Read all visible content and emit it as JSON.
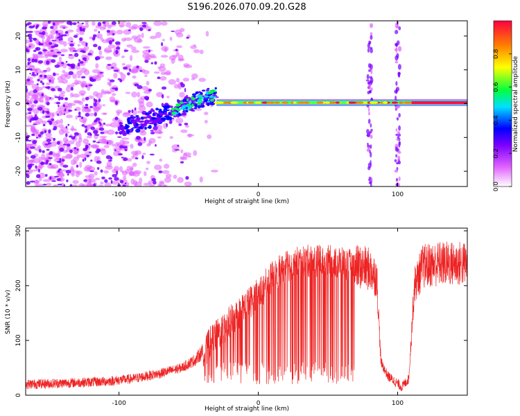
{
  "title": "S196.2026.070.09.20.G28",
  "chart_data": [
    {
      "type": "heatmap",
      "xlabel": "Height of straight line (km)",
      "ylabel": "Frequency (Hz)",
      "xlim": [
        -167,
        150
      ],
      "ylim": [
        -24.5,
        24.5
      ],
      "xticks": [
        -100,
        0,
        100
      ],
      "yticks": [
        -20,
        -10,
        0,
        10,
        20
      ],
      "xtick_labels": [
        "-100",
        "0",
        "100"
      ],
      "ytick_labels": [
        "-20",
        "-10",
        "0",
        "10",
        "20"
      ],
      "colorbar": {
        "label": "Normalized spectral amplitude",
        "range": [
          0.0,
          1.0
        ],
        "ticks": [
          0.0,
          0.2,
          0.4,
          0.6,
          0.8
        ],
        "tick_labels": [
          "0.0",
          "0.2",
          "0.4",
          "0.6",
          "0.8"
        ],
        "colormap": [
          "#ffffff",
          "#e060ff",
          "#7a00ff",
          "#0000ff",
          "#00e0ff",
          "#00ff40",
          "#ffff00",
          "#ff8000",
          "#ff0040"
        ]
      },
      "features": {
        "noise_region_x": [
          -167,
          -50
        ],
        "rising_tone": {
          "x": [
            -100,
            -30
          ],
          "freq": [
            -8,
            3
          ]
        },
        "steady_line": {
          "x": [
            -30,
            150
          ],
          "freq": 0.3
        },
        "vertical_stripes_x": [
          80,
          100
        ]
      }
    },
    {
      "type": "line",
      "xlabel": "Height of straight line (km)",
      "ylabel": "SNR (10 * v/v)",
      "xlim": [
        -167,
        150
      ],
      "ylim": [
        0,
        305
      ],
      "xticks": [
        -100,
        0,
        100
      ],
      "yticks": [
        0,
        100,
        200,
        300
      ],
      "xtick_labels": [
        "-100",
        "0",
        "100"
      ],
      "ytick_labels": [
        "0",
        "100",
        "200",
        "300"
      ],
      "series": [
        {
          "name": "SNR",
          "color": "#ee2222",
          "x": [
            -167,
            -140,
            -110,
            -90,
            -70,
            -55,
            -45,
            -35,
            -20,
            -10,
            0,
            10,
            20,
            30,
            40,
            50,
            60,
            70,
            80,
            85,
            88,
            93,
            98,
            103,
            108,
            112,
            118,
            130,
            150
          ],
          "y": [
            20,
            22,
            25,
            30,
            40,
            50,
            65,
            95,
            135,
            160,
            185,
            215,
            235,
            245,
            245,
            245,
            240,
            235,
            230,
            215,
            60,
            35,
            25,
            15,
            30,
            200,
            235,
            240,
            240
          ]
        }
      ]
    }
  ]
}
